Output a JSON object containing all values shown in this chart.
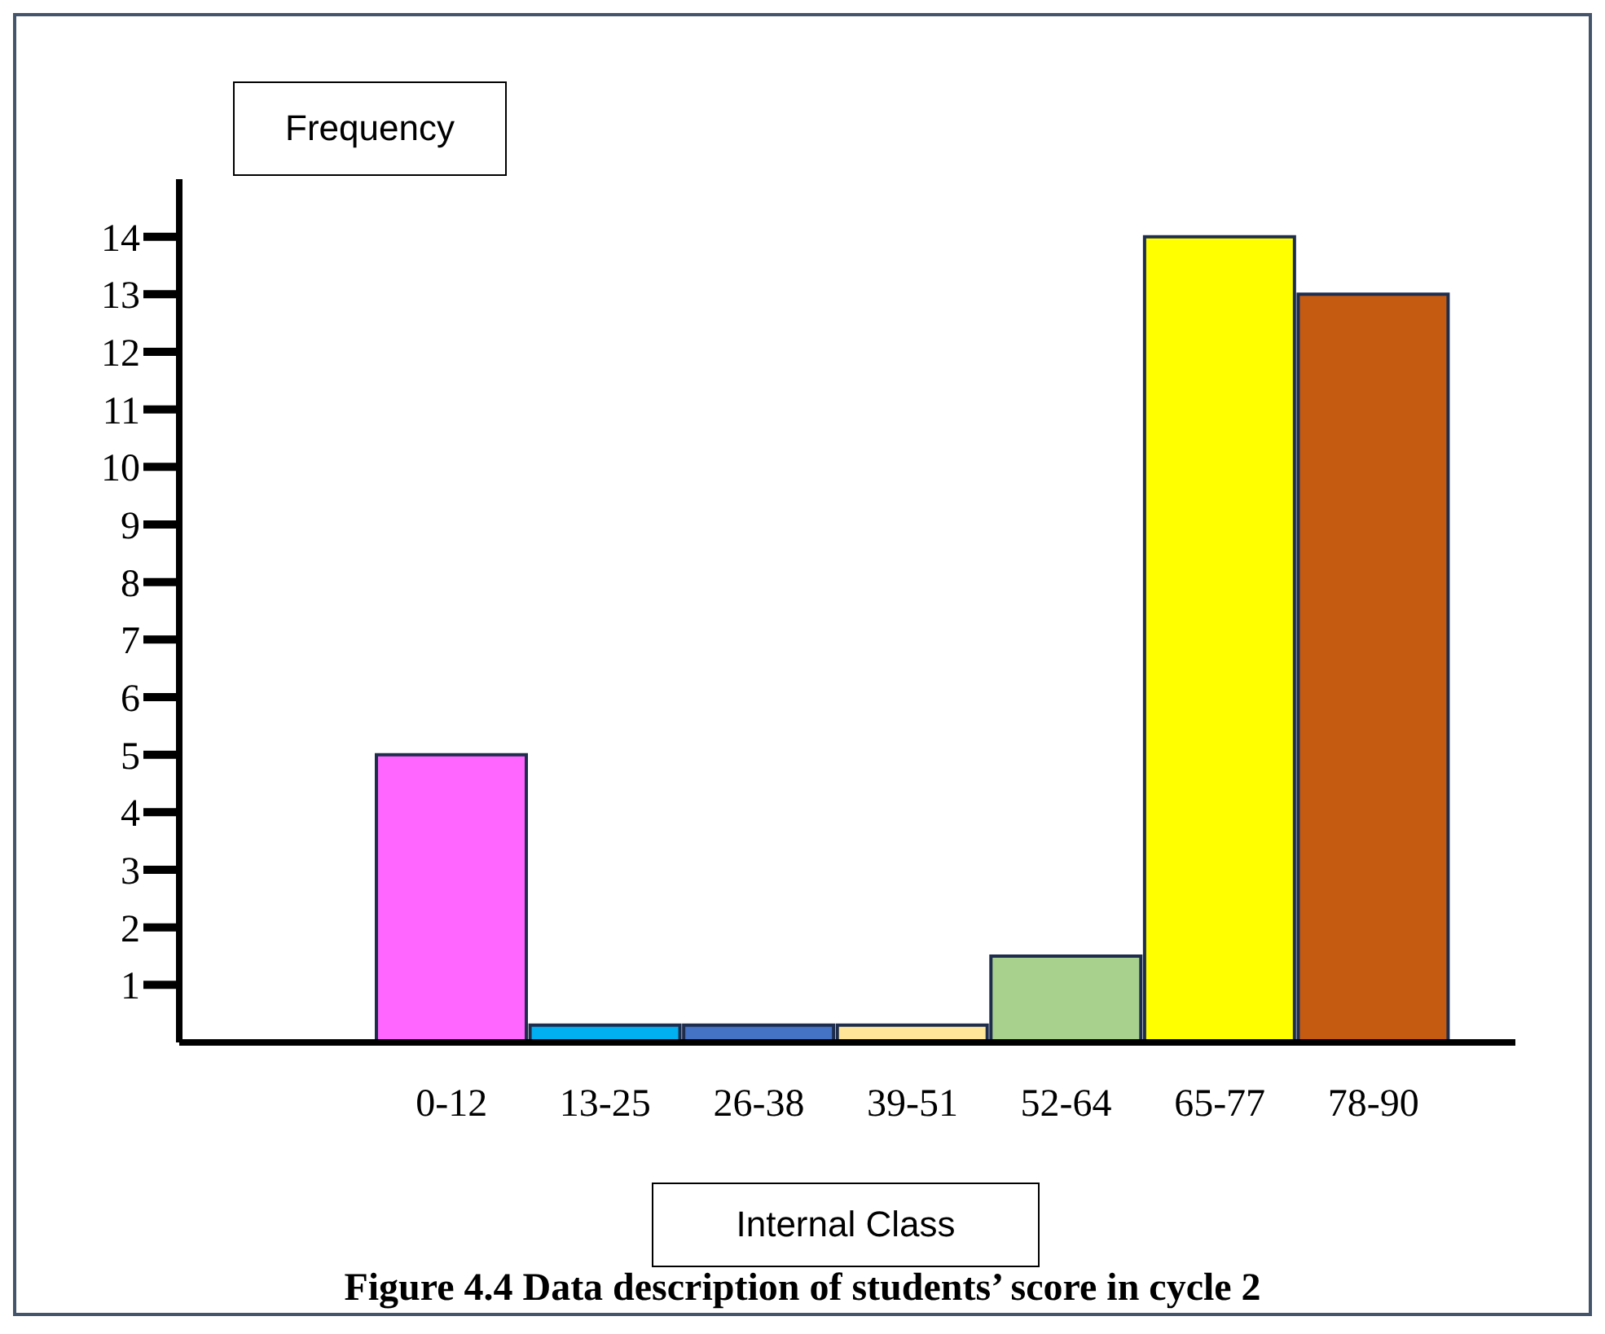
{
  "chart_data": {
    "type": "bar",
    "title": "Figure 4.4 Data description of students’ score in cycle 2",
    "xlabel": "Internal Class",
    "ylabel": "Frequency",
    "categories": [
      "0-12",
      "13-25",
      "26-38",
      "39-51",
      "52-64",
      "65-77",
      "78-90"
    ],
    "values": [
      5,
      0.3,
      0.3,
      0.3,
      1.5,
      14,
      13
    ],
    "colors": [
      "#ff66ff",
      "#00b0f0",
      "#4472c4",
      "#ffe699",
      "#a9d18e",
      "#ffff00",
      "#c55a11"
    ],
    "ylim": [
      0,
      15
    ],
    "yticks": [
      1,
      2,
      3,
      4,
      5,
      6,
      7,
      8,
      9,
      10,
      11,
      12,
      13,
      14
    ],
    "grid": false,
    "legend": false
  }
}
